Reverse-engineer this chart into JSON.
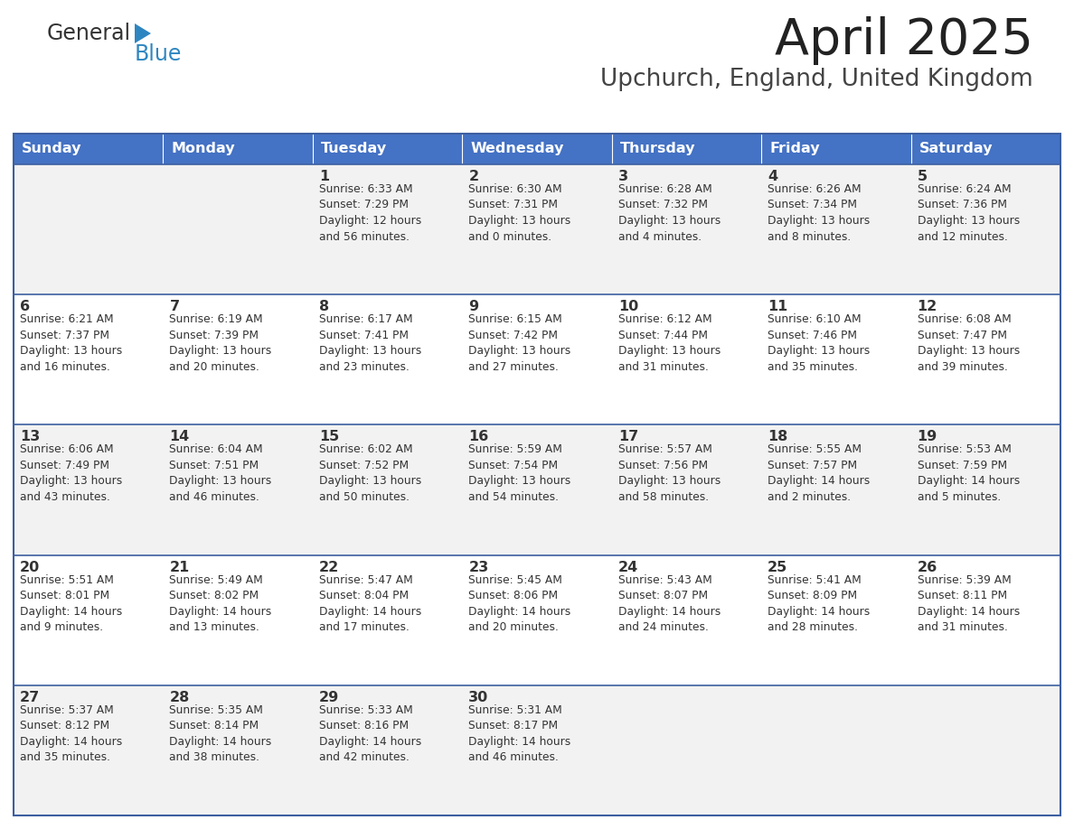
{
  "title": "April 2025",
  "subtitle": "Upchurch, England, United Kingdom",
  "header_color": "#4472C4",
  "header_text_color": "#FFFFFF",
  "cell_bg_even": "#F2F2F2",
  "cell_bg_odd": "#FFFFFF",
  "border_color": "#3C5FA0",
  "text_color": "#333333",
  "days_of_week": [
    "Sunday",
    "Monday",
    "Tuesday",
    "Wednesday",
    "Thursday",
    "Friday",
    "Saturday"
  ],
  "weeks": [
    [
      {
        "day": "",
        "info": ""
      },
      {
        "day": "",
        "info": ""
      },
      {
        "day": "1",
        "info": "Sunrise: 6:33 AM\nSunset: 7:29 PM\nDaylight: 12 hours\nand 56 minutes."
      },
      {
        "day": "2",
        "info": "Sunrise: 6:30 AM\nSunset: 7:31 PM\nDaylight: 13 hours\nand 0 minutes."
      },
      {
        "day": "3",
        "info": "Sunrise: 6:28 AM\nSunset: 7:32 PM\nDaylight: 13 hours\nand 4 minutes."
      },
      {
        "day": "4",
        "info": "Sunrise: 6:26 AM\nSunset: 7:34 PM\nDaylight: 13 hours\nand 8 minutes."
      },
      {
        "day": "5",
        "info": "Sunrise: 6:24 AM\nSunset: 7:36 PM\nDaylight: 13 hours\nand 12 minutes."
      }
    ],
    [
      {
        "day": "6",
        "info": "Sunrise: 6:21 AM\nSunset: 7:37 PM\nDaylight: 13 hours\nand 16 minutes."
      },
      {
        "day": "7",
        "info": "Sunrise: 6:19 AM\nSunset: 7:39 PM\nDaylight: 13 hours\nand 20 minutes."
      },
      {
        "day": "8",
        "info": "Sunrise: 6:17 AM\nSunset: 7:41 PM\nDaylight: 13 hours\nand 23 minutes."
      },
      {
        "day": "9",
        "info": "Sunrise: 6:15 AM\nSunset: 7:42 PM\nDaylight: 13 hours\nand 27 minutes."
      },
      {
        "day": "10",
        "info": "Sunrise: 6:12 AM\nSunset: 7:44 PM\nDaylight: 13 hours\nand 31 minutes."
      },
      {
        "day": "11",
        "info": "Sunrise: 6:10 AM\nSunset: 7:46 PM\nDaylight: 13 hours\nand 35 minutes."
      },
      {
        "day": "12",
        "info": "Sunrise: 6:08 AM\nSunset: 7:47 PM\nDaylight: 13 hours\nand 39 minutes."
      }
    ],
    [
      {
        "day": "13",
        "info": "Sunrise: 6:06 AM\nSunset: 7:49 PM\nDaylight: 13 hours\nand 43 minutes."
      },
      {
        "day": "14",
        "info": "Sunrise: 6:04 AM\nSunset: 7:51 PM\nDaylight: 13 hours\nand 46 minutes."
      },
      {
        "day": "15",
        "info": "Sunrise: 6:02 AM\nSunset: 7:52 PM\nDaylight: 13 hours\nand 50 minutes."
      },
      {
        "day": "16",
        "info": "Sunrise: 5:59 AM\nSunset: 7:54 PM\nDaylight: 13 hours\nand 54 minutes."
      },
      {
        "day": "17",
        "info": "Sunrise: 5:57 AM\nSunset: 7:56 PM\nDaylight: 13 hours\nand 58 minutes."
      },
      {
        "day": "18",
        "info": "Sunrise: 5:55 AM\nSunset: 7:57 PM\nDaylight: 14 hours\nand 2 minutes."
      },
      {
        "day": "19",
        "info": "Sunrise: 5:53 AM\nSunset: 7:59 PM\nDaylight: 14 hours\nand 5 minutes."
      }
    ],
    [
      {
        "day": "20",
        "info": "Sunrise: 5:51 AM\nSunset: 8:01 PM\nDaylight: 14 hours\nand 9 minutes."
      },
      {
        "day": "21",
        "info": "Sunrise: 5:49 AM\nSunset: 8:02 PM\nDaylight: 14 hours\nand 13 minutes."
      },
      {
        "day": "22",
        "info": "Sunrise: 5:47 AM\nSunset: 8:04 PM\nDaylight: 14 hours\nand 17 minutes."
      },
      {
        "day": "23",
        "info": "Sunrise: 5:45 AM\nSunset: 8:06 PM\nDaylight: 14 hours\nand 20 minutes."
      },
      {
        "day": "24",
        "info": "Sunrise: 5:43 AM\nSunset: 8:07 PM\nDaylight: 14 hours\nand 24 minutes."
      },
      {
        "day": "25",
        "info": "Sunrise: 5:41 AM\nSunset: 8:09 PM\nDaylight: 14 hours\nand 28 minutes."
      },
      {
        "day": "26",
        "info": "Sunrise: 5:39 AM\nSunset: 8:11 PM\nDaylight: 14 hours\nand 31 minutes."
      }
    ],
    [
      {
        "day": "27",
        "info": "Sunrise: 5:37 AM\nSunset: 8:12 PM\nDaylight: 14 hours\nand 35 minutes."
      },
      {
        "day": "28",
        "info": "Sunrise: 5:35 AM\nSunset: 8:14 PM\nDaylight: 14 hours\nand 38 minutes."
      },
      {
        "day": "29",
        "info": "Sunrise: 5:33 AM\nSunset: 8:16 PM\nDaylight: 14 hours\nand 42 minutes."
      },
      {
        "day": "30",
        "info": "Sunrise: 5:31 AM\nSunset: 8:17 PM\nDaylight: 14 hours\nand 46 minutes."
      },
      {
        "day": "",
        "info": ""
      },
      {
        "day": "",
        "info": ""
      },
      {
        "day": "",
        "info": ""
      }
    ]
  ],
  "logo_text_general": "General",
  "logo_text_blue": "Blue",
  "logo_general_color": "#333333",
  "logo_blue_color": "#2E86C1",
  "logo_triangle_color": "#2E86C1",
  "fig_width": 11.88,
  "fig_height": 9.18,
  "dpi": 100
}
